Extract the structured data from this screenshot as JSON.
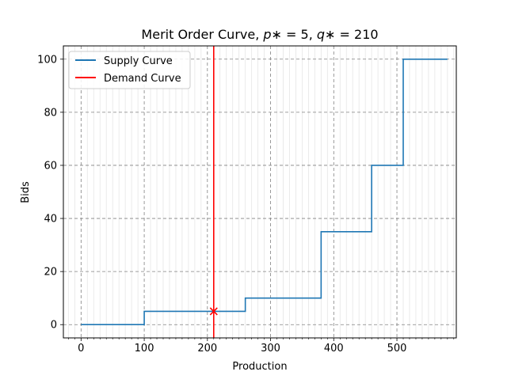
{
  "chart_data": {
    "type": "line",
    "title_parts": {
      "prefix": "Merit Order Curve, ",
      "p_sym": "p",
      "p_eq": "∗ = 5, ",
      "q_sym": "q",
      "q_eq": "∗ = 210"
    },
    "xlabel": "Production",
    "ylabel": "Bids",
    "xlim": [
      -28,
      594
    ],
    "ylim": [
      -5,
      105
    ],
    "x_ticks": [
      0,
      100,
      200,
      300,
      400,
      500
    ],
    "x_tick_labels": [
      "0",
      "100",
      "200",
      "300",
      "400",
      "500"
    ],
    "x_minor_step": 10,
    "y_ticks": [
      0,
      20,
      40,
      60,
      80,
      100
    ],
    "y_tick_labels": [
      "0",
      "20",
      "40",
      "60",
      "80",
      "100"
    ],
    "grid": true,
    "legend_position": "top-left",
    "series": [
      {
        "name": "Supply Curve",
        "style": "step",
        "color": "#1f77b4",
        "x": [
          0,
          100,
          260,
          380,
          460,
          510,
          580
        ],
        "y": [
          0,
          5,
          10,
          35,
          60,
          100,
          100
        ]
      },
      {
        "name": "Demand Curve",
        "style": "vertical-line",
        "color": "#ff0000",
        "x": 210
      }
    ],
    "equilibrium": {
      "x": 210,
      "y": 5,
      "marker": "x",
      "color": "#ff0000"
    }
  }
}
